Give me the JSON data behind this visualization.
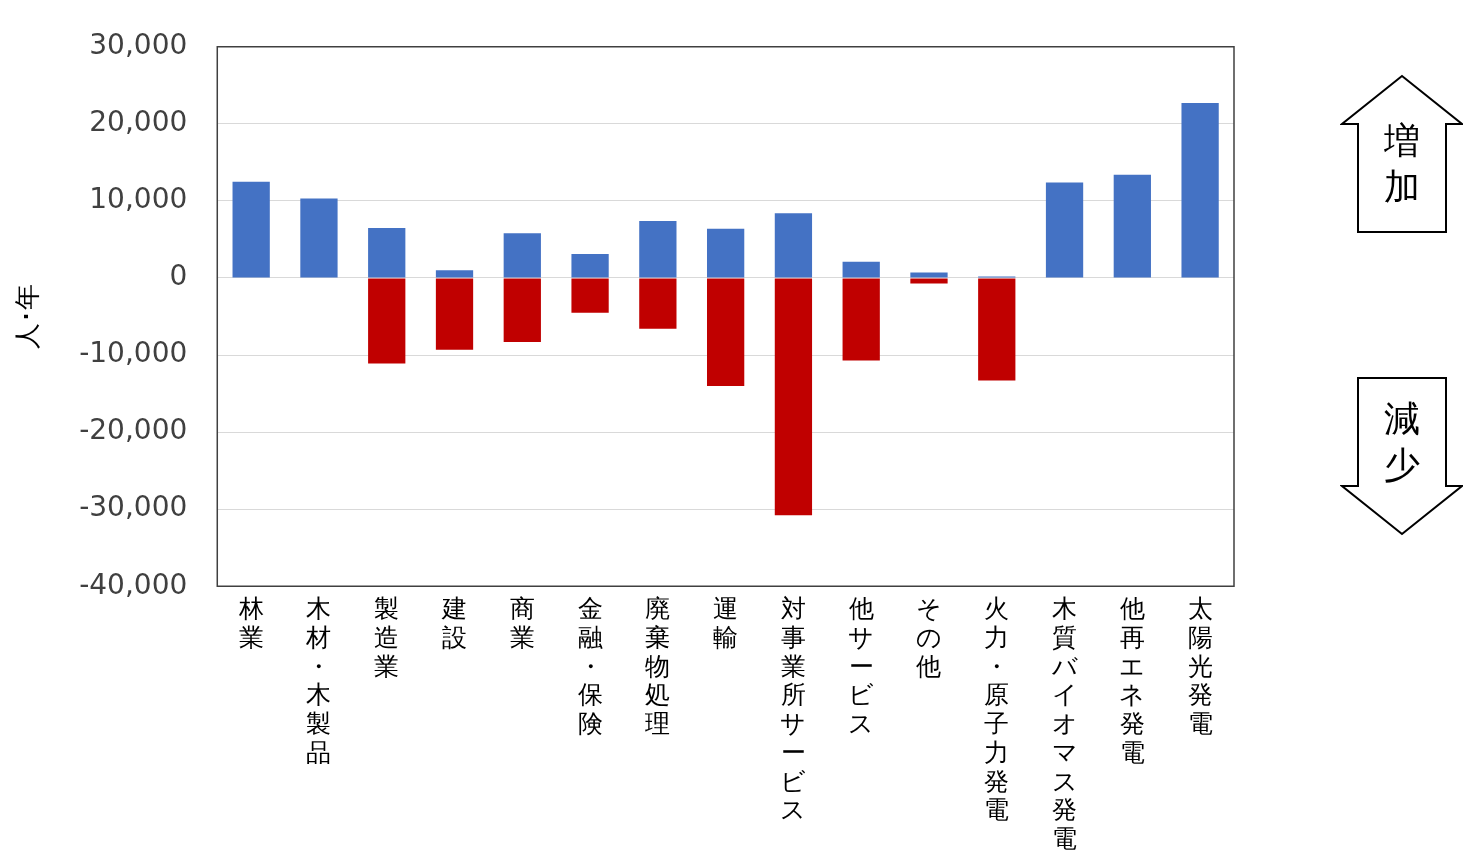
{
  "chart_data": {
    "type": "bar",
    "stacked": true,
    "ylabel": "人･年",
    "categories": [
      "林業",
      "木材・木製品",
      "製造業",
      "建設",
      "商業",
      "金融・保険",
      "廃棄物処理",
      "運輸",
      "対事業所サービス",
      "他サービス",
      "その他",
      "火力・原子力発電",
      "木質バイオマス発電",
      "他再エネ発電",
      "太陽光発電"
    ],
    "series": [
      {
        "color": "#4472c4",
        "values": [
          12500,
          10300,
          6500,
          1000,
          5800,
          3100,
          7400,
          6400,
          8400,
          2100,
          700,
          200,
          12400,
          13400,
          22700
        ]
      },
      {
        "color": "#c00000",
        "values": [
          null,
          null,
          -11100,
          -9300,
          -8300,
          -4500,
          -6600,
          -14000,
          -30800,
          -10700,
          -700,
          -13300,
          null,
          null,
          null
        ]
      }
    ],
    "ylim": [
      -40000,
      30000
    ],
    "yticks": [
      {
        "value": -40000,
        "label": "-40,000"
      },
      {
        "value": -30000,
        "label": "-30,000"
      },
      {
        "value": -20000,
        "label": "-20,000"
      },
      {
        "value": -10000,
        "label": "-10,000"
      },
      {
        "value": 0,
        "label": "0"
      },
      {
        "value": 10000,
        "label": "10,000"
      },
      {
        "value": 20000,
        "label": "20,000"
      },
      {
        "value": 30000,
        "label": "30,000"
      }
    ],
    "grid": "y",
    "legend": false,
    "annotations": [
      "増加",
      "減少"
    ]
  }
}
